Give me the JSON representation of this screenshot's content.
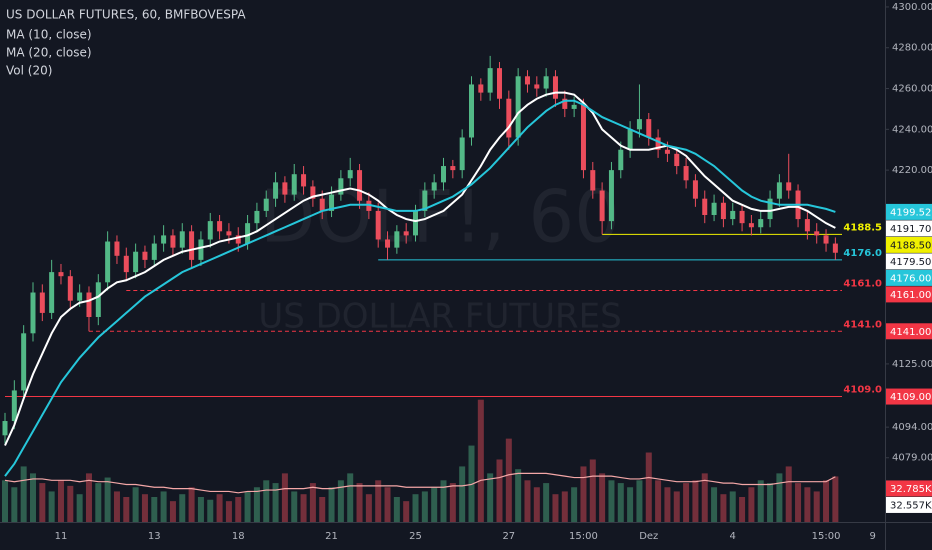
{
  "chart_data": {
    "type": "candlestick",
    "title": "US DOLLAR FUTURES, 60, BMFBOVESPA",
    "watermark": "DOLF!, 60",
    "watermark_subtitle": "US DOLLAR FUTURES",
    "up_color": "#53b987",
    "down_color": "#eb4d5c",
    "grid": false,
    "categories": [
      null,
      null,
      null,
      null,
      null,
      null,
      "11",
      null,
      null,
      null,
      null,
      null,
      null,
      null,
      null,
      null,
      "13",
      null,
      null,
      null,
      null,
      null,
      null,
      null,
      null,
      "18",
      null,
      null,
      null,
      null,
      null,
      null,
      null,
      null,
      null,
      "21",
      null,
      null,
      null,
      null,
      null,
      null,
      null,
      null,
      "25",
      null,
      null,
      null,
      null,
      null,
      null,
      null,
      null,
      null,
      "27",
      null,
      null,
      null,
      null,
      null,
      null,
      null,
      "15:00",
      null,
      null,
      null,
      null,
      null,
      null,
      "Dez",
      null,
      null,
      null,
      null,
      null,
      null,
      null,
      null,
      "4",
      null,
      null,
      null,
      null,
      null,
      null,
      null,
      null,
      null,
      "15:00",
      null,
      null,
      null,
      null,
      "9"
    ],
    "open": [
      4090,
      4097,
      4112,
      4140,
      4160,
      4150,
      4170,
      4168,
      4156,
      4160,
      4148,
      4165,
      4185,
      4178,
      4170,
      4180,
      4176,
      4184,
      4188,
      4182,
      4190,
      4176,
      4186,
      4195,
      4190,
      4188,
      4184,
      4194,
      4200,
      4206,
      4214,
      4208,
      4218,
      4212,
      4206,
      4200,
      4208,
      4216,
      4220,
      4205,
      4200,
      4186,
      4182,
      4190,
      4188,
      4200,
      4210,
      4214,
      4222,
      4220,
      4236,
      4262,
      4258,
      4270,
      4255,
      4236,
      4266,
      4262,
      4260,
      4266,
      4255,
      4250,
      4252,
      4220,
      4210,
      4195,
      4220,
      4230,
      4240,
      4245,
      4236,
      4230,
      4228,
      4222,
      4215,
      4206,
      4198,
      4204,
      4196,
      4200,
      4194,
      4192,
      4196,
      4206,
      4214,
      4210,
      4196,
      4190,
      4188,
      4184,
      null,
      null,
      null,
      null
    ],
    "high": [
      4101,
      4117,
      4144,
      4165,
      4164,
      4176,
      4174,
      4171,
      4164,
      4163,
      4169,
      4190,
      4188,
      4182,
      4184,
      4183,
      4188,
      4193,
      4191,
      4194,
      4193,
      4190,
      4199,
      4198,
      4194,
      4192,
      4198,
      4204,
      4210,
      4219,
      4217,
      4223,
      4222,
      4215,
      4210,
      4212,
      4220,
      4226,
      4223,
      4209,
      4204,
      4190,
      4193,
      4194,
      4203,
      4214,
      4218,
      4226,
      4225,
      4240,
      4266,
      4265,
      4276,
      4273,
      4259,
      4270,
      4269,
      4266,
      4270,
      4269,
      4259,
      4256,
      4255,
      4224,
      4214,
      4224,
      4234,
      4244,
      4262,
      4248,
      4240,
      4234,
      4231,
      4226,
      4218,
      4210,
      4208,
      4207,
      4204,
      4203,
      4198,
      4200,
      4210,
      4218,
      4228,
      4213,
      4200,
      4194,
      4191,
      4187,
      null,
      null,
      null,
      null
    ],
    "low": [
      4086,
      4093,
      4108,
      4136,
      4146,
      4147,
      4164,
      4152,
      4153,
      4141,
      4144,
      4161,
      4174,
      4166,
      4167,
      4172,
      4173,
      4180,
      4178,
      4179,
      4172,
      4173,
      4182,
      4186,
      4184,
      4180,
      4181,
      4190,
      4197,
      4202,
      4204,
      4205,
      4208,
      4202,
      4196,
      4197,
      4205,
      4212,
      4201,
      4196,
      4182,
      4176,
      4179,
      4184,
      4185,
      4197,
      4206,
      4210,
      4216,
      4216,
      4232,
      4254,
      4254,
      4250,
      4230,
      4232,
      4258,
      4256,
      4256,
      4251,
      4246,
      4246,
      4216,
      4206,
      4188.5,
      4191,
      4216,
      4226,
      4236,
      4232,
      4226,
      4224,
      4218,
      4211,
      4202,
      4194,
      4195,
      4192,
      4193,
      4190,
      4188,
      4189,
      4192,
      4202,
      4206,
      4192,
      4186,
      4184,
      4180,
      4176,
      null,
      null,
      null,
      null
    ],
    "close": [
      4097,
      4112,
      4140,
      4160,
      4150,
      4170,
      4168,
      4156,
      4160,
      4148,
      4165,
      4185,
      4178,
      4170,
      4180,
      4176,
      4184,
      4188,
      4182,
      4190,
      4176,
      4186,
      4195,
      4190,
      4188,
      4184,
      4194,
      4200,
      4206,
      4214,
      4208,
      4218,
      4212,
      4206,
      4200,
      4208,
      4216,
      4220,
      4205,
      4200,
      4186,
      4182,
      4190,
      4188,
      4200,
      4210,
      4214,
      4222,
      4220,
      4236,
      4262,
      4258,
      4270,
      4255,
      4236,
      4266,
      4262,
      4260,
      4266,
      4255,
      4250,
      4252,
      4220,
      4210,
      4195,
      4220,
      4230,
      4240,
      4245,
      4236,
      4230,
      4228,
      4222,
      4215,
      4206,
      4198,
      4204,
      4196,
      4200,
      4194,
      4192,
      4196,
      4206,
      4214,
      4210,
      4196,
      4190,
      4188,
      4184,
      4179.5,
      null,
      null,
      null,
      null
    ],
    "series": [
      {
        "name": "MA (10, close)",
        "color": "#ffffff",
        "values": [
          4085,
          4095,
          4108,
          4120,
          4130,
          4140,
          4148,
          4152,
          4155,
          4156,
          4158,
          4162,
          4165,
          4166,
          4168,
          4170,
          4173,
          4176,
          4178,
          4180,
          4181,
          4182,
          4183,
          4185,
          4186,
          4187,
          4188,
          4190,
          4193,
          4196,
          4199,
          4202,
          4205,
          4207,
          4208,
          4209,
          4210,
          4211,
          4210,
          4208,
          4205,
          4201,
          4198,
          4196,
          4195,
          4196,
          4198,
          4200,
          4204,
          4208,
          4215,
          4222,
          4230,
          4236,
          4241,
          4248,
          4252,
          4255,
          4257,
          4258,
          4258,
          4257,
          4253,
          4248,
          4240,
          4236,
          4232,
          4230,
          4230,
          4230,
          4231,
          4232,
          4230,
          4227,
          4222,
          4217,
          4213,
          4209,
          4205,
          4203,
          4201,
          4200,
          4200,
          4201,
          4202,
          4202,
          4200,
          4197,
          4194,
          4191.7,
          null,
          null,
          null,
          null
        ]
      },
      {
        "name": "MA (20, close)",
        "color": "#26c6da",
        "values": [
          4070,
          4076,
          4084,
          4092,
          4100,
          4108,
          4116,
          4122,
          4128,
          4133,
          4138,
          4142,
          4146,
          4150,
          4154,
          4158,
          4161,
          4164,
          4167,
          4170,
          4172,
          4174,
          4176,
          4178,
          4180,
          4182,
          4184,
          4186,
          4188,
          4190,
          4192,
          4194,
          4196,
          4198,
          4200,
          4201,
          4202,
          4203,
          4203,
          4203,
          4202,
          4201,
          4200,
          4200,
          4200,
          4201,
          4203,
          4205,
          4207,
          4210,
          4213,
          4217,
          4221,
          4226,
          4231,
          4236,
          4241,
          4245,
          4249,
          4252,
          4254,
          4254,
          4252,
          4249,
          4246,
          4244,
          4242,
          4240,
          4238,
          4236,
          4234,
          4232,
          4231,
          4230,
          4228,
          4225,
          4222,
          4218,
          4214,
          4210,
          4207,
          4205,
          4204,
          4203,
          4203,
          4203,
          4203,
          4202,
          4201,
          4199.52,
          null,
          null,
          null,
          null
        ]
      }
    ],
    "volume": {
      "name": "Vol (20)",
      "axis": "y2",
      "ma_color": "#f4a7a7",
      "values": [
        30,
        25,
        40,
        35,
        28,
        22,
        30,
        26,
        20,
        35,
        28,
        32,
        22,
        18,
        25,
        20,
        18,
        22,
        15,
        20,
        25,
        18,
        16,
        20,
        15,
        18,
        22,
        25,
        30,
        28,
        35,
        22,
        20,
        28,
        18,
        25,
        30,
        35,
        28,
        20,
        30,
        25,
        18,
        15,
        20,
        22,
        25,
        30,
        28,
        40,
        55,
        88,
        35,
        45,
        60,
        38,
        30,
        25,
        28,
        20,
        22,
        25,
        40,
        45,
        35,
        30,
        28,
        25,
        30,
        50,
        30,
        25,
        22,
        28,
        30,
        35,
        25,
        20,
        22,
        18,
        25,
        30,
        28,
        35,
        40,
        28,
        25,
        22,
        30,
        32.785,
        null,
        null,
        null,
        null
      ],
      "ma": [
        30,
        29,
        30,
        31,
        31,
        30,
        30,
        30,
        29,
        30,
        29,
        29,
        28,
        27,
        27,
        26,
        25,
        25,
        24,
        24,
        24,
        23,
        22,
        22,
        22,
        21,
        22,
        22,
        23,
        23,
        24,
        24,
        24,
        25,
        24,
        24,
        25,
        26,
        26,
        26,
        26,
        26,
        26,
        25,
        25,
        25,
        25,
        25,
        26,
        26,
        27,
        30,
        31,
        32,
        34,
        35,
        35,
        35,
        35,
        34,
        33,
        32,
        32,
        33,
        33,
        33,
        32,
        31,
        31,
        32,
        31,
        30,
        29,
        29,
        29,
        30,
        29,
        28,
        28,
        27,
        27,
        27,
        27,
        28,
        29,
        29,
        29,
        29,
        29,
        32.557,
        null,
        null,
        null,
        null
      ]
    },
    "ylim": [
      4047.5,
      4303.4
    ],
    "yticks": [
      {
        "value": 4300,
        "label": "4300.00"
      },
      {
        "value": 4280,
        "label": "4280.00"
      },
      {
        "value": 4260,
        "label": "4260.00"
      },
      {
        "value": 4240,
        "label": "4240.00"
      },
      {
        "value": 4220,
        "label": "4220.00"
      },
      {
        "value": 4125,
        "label": "4125.00"
      },
      {
        "value": 4094,
        "label": "4094.00"
      },
      {
        "value": 4079,
        "label": "4079.00"
      }
    ],
    "y2lim": [
      0,
      95
    ],
    "levels": [
      {
        "value": 4188.5,
        "label": "4188.5",
        "color": "#f0f000",
        "dashed": false,
        "from": 64
      },
      {
        "value": 4176,
        "label": "4176.0",
        "color": "#26c6da",
        "dashed": false,
        "from": 40
      },
      {
        "value": 4161,
        "label": "4161.0",
        "color": "#f23645",
        "dashed": true,
        "from": 13
      },
      {
        "value": 4141,
        "label": "4141.0",
        "color": "#f23645",
        "dashed": true,
        "from": 9
      },
      {
        "value": 4109,
        "label": "4109.0",
        "color": "#f23645",
        "dashed": false,
        "from": 0
      }
    ],
    "price_tags": [
      {
        "value": 4199.52,
        "label": "4199.52",
        "color": "#26c6da"
      },
      {
        "value": 4191.7,
        "label": "4191.70",
        "color": "#ffffff"
      },
      {
        "value": 4188.5,
        "label": "4188.50",
        "color": "#f0f000"
      },
      {
        "value": 4179.5,
        "label": "4179.50",
        "color": "#ffffff"
      },
      {
        "value": 4176,
        "label": "4176.00",
        "color": "#26c6da"
      },
      {
        "value": 4161,
        "label": "4161.00",
        "color": "#f23645"
      },
      {
        "value": 4141,
        "label": "4141.00",
        "color": "#f23645"
      },
      {
        "value": 4109,
        "label": "4109.00",
        "color": "#f23645"
      }
    ],
    "volume_tags": [
      {
        "value": 32.785,
        "label": "32.785K",
        "color": "#f23645"
      },
      {
        "value": 32.557,
        "label": "32.557K",
        "color": "#ffffff"
      }
    ]
  }
}
